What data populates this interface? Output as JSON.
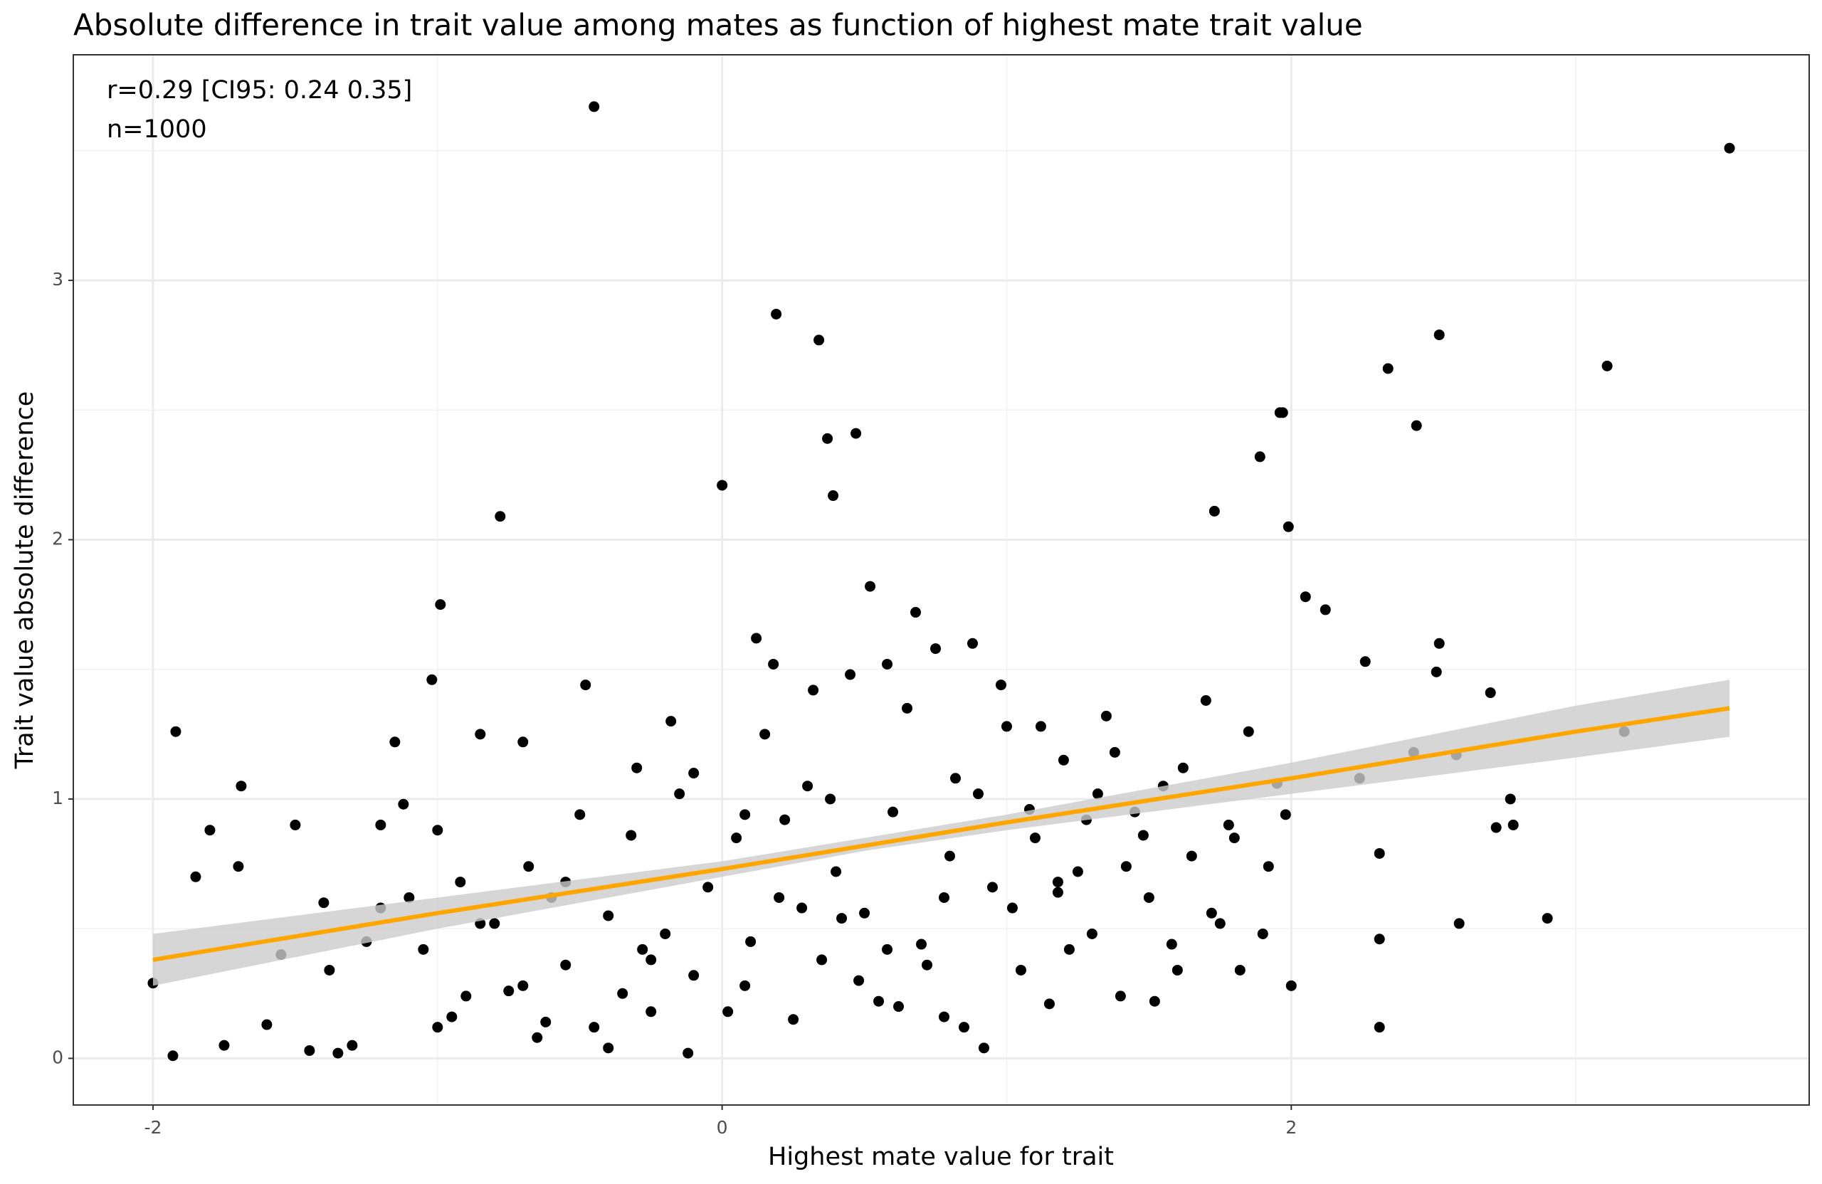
{
  "chart_data": {
    "type": "scatter",
    "title": "Absolute difference in trait value among mates as function of highest mate trait value",
    "x_label": "Highest mate value for trait",
    "y_label": "Trait value absolute difference",
    "annotations": [
      "r=0.29 [CI95: 0.24 0.35]",
      "n=1000"
    ],
    "xlim": [
      -2.28,
      3.82
    ],
    "ylim": [
      -0.18,
      3.87
    ],
    "xticks": [
      -2,
      0,
      2
    ],
    "yticks": [
      0,
      1,
      2,
      3
    ],
    "x_minor_grid": [
      -1,
      1,
      3
    ],
    "y_minor_grid": [
      0.5,
      1.5,
      2.5,
      3.5
    ],
    "grid": true,
    "color": "#000000",
    "x": [
      -0.45,
      3.54,
      0.19,
      0.34,
      2.52,
      3.11,
      2.34,
      2.44,
      1.96,
      1.97,
      1.89,
      -0.78,
      1.99,
      1.73,
      0,
      0.37,
      0.47,
      0.39,
      -1.92,
      2.77,
      2.9,
      2.31,
      2.31,
      2.59,
      2.7,
      3.17,
      2.52,
      2.51,
      2.26,
      2.12,
      2.05,
      2.24,
      2.31,
      2.78,
      2.72,
      2.43,
      2.58,
      -2,
      -1.93,
      -1.69,
      -0.99,
      -1.02,
      -0.48,
      -1.8,
      -1.75,
      -1.6,
      -1.5,
      -1.45,
      -1.4,
      -1.3,
      -1.25,
      -1.2,
      -1.15,
      -1.1,
      -1.05,
      -1,
      -0.95,
      -0.9,
      -0.85,
      -0.8,
      -0.75,
      -0.7,
      -0.65,
      -0.6,
      -0.55,
      -0.5,
      -0.45,
      -0.4,
      -0.35,
      -0.3,
      -0.25,
      -0.2,
      -0.15,
      -0.1,
      -0.05,
      0.05,
      0.1,
      0.15,
      0.2,
      0.25,
      0.3,
      0.35,
      0.4,
      0.45,
      0.5,
      0.55,
      0.6,
      0.65,
      0.7,
      0.75,
      0.8,
      0.85,
      0.9,
      0.95,
      1.0,
      1.05,
      1.1,
      1.15,
      1.2,
      1.25,
      1.3,
      1.35,
      1.4,
      1.45,
      1.5,
      1.55,
      1.6,
      1.65,
      1.7,
      1.75,
      1.8,
      1.85,
      1.9,
      1.95,
      2.0,
      -1.7,
      -1.55,
      -1.35,
      -1.2,
      -1.0,
      -0.85,
      -0.7,
      -0.55,
      -0.4,
      -0.25,
      -0.1,
      0.02,
      0.12,
      0.22,
      0.32,
      0.42,
      0.52,
      0.62,
      0.72,
      0.82,
      0.92,
      1.02,
      1.12,
      1.22,
      1.32,
      1.42,
      1.52,
      1.62,
      1.72,
      1.82,
      1.92,
      -1.85,
      -1.38,
      -1.12,
      -0.92,
      -0.62,
      -0.32,
      -0.18,
      0.08,
      0.28,
      0.58,
      0.78,
      0.98,
      1.18,
      1.38,
      1.58,
      1.78,
      1.98,
      -0.68,
      -0.28,
      0.08,
      0.18,
      0.48,
      0.68,
      0.88,
      1.08,
      1.28,
      1.48,
      -0.12,
      0.38,
      0.78,
      1.18,
      0.58
    ],
    "values": [
      3.67,
      3.51,
      2.87,
      2.77,
      2.79,
      2.67,
      2.66,
      2.44,
      2.49,
      2.49,
      2.32,
      2.09,
      2.05,
      2.11,
      2.21,
      2.39,
      2.41,
      2.17,
      1.26,
      1.0,
      0.54,
      0.12,
      0.46,
      0.52,
      1.41,
      1.26,
      1.6,
      1.49,
      1.53,
      1.73,
      1.78,
      1.08,
      0.79,
      0.9,
      0.89,
      1.18,
      1.17,
      0.29,
      0.01,
      1.05,
      1.75,
      1.46,
      1.44,
      0.88,
      0.05,
      0.13,
      0.9,
      0.03,
      0.6,
      0.05,
      0.45,
      0.58,
      1.22,
      0.62,
      0.42,
      0.88,
      0.16,
      0.24,
      1.25,
      0.52,
      0.26,
      1.22,
      0.08,
      0.62,
      0.36,
      0.94,
      0.12,
      0.55,
      0.25,
      1.12,
      0.18,
      0.48,
      1.02,
      0.32,
      0.66,
      0.85,
      0.45,
      1.25,
      0.62,
      0.15,
      1.05,
      0.38,
      0.72,
      1.48,
      0.56,
      0.22,
      0.95,
      1.35,
      0.44,
      1.58,
      0.78,
      0.12,
      1.02,
      0.66,
      1.28,
      0.34,
      0.85,
      0.21,
      1.15,
      0.72,
      0.48,
      1.32,
      0.24,
      0.95,
      0.62,
      1.05,
      0.34,
      0.78,
      1.38,
      0.52,
      0.85,
      1.26,
      0.48,
      1.06,
      0.28,
      0.74,
      0.4,
      0.02,
      0.9,
      0.12,
      0.52,
      0.28,
      0.68,
      0.04,
      0.38,
      1.1,
      0.18,
      1.62,
      0.92,
      1.42,
      0.54,
      1.82,
      0.2,
      0.36,
      1.08,
      0.04,
      0.58,
      1.28,
      0.42,
      1.02,
      0.74,
      0.22,
      1.12,
      0.56,
      0.34,
      0.74,
      0.7,
      0.34,
      0.98,
      0.68,
      0.14,
      0.86,
      1.3,
      0.28,
      0.58,
      1.52,
      0.16,
      1.44,
      0.68,
      1.18,
      0.44,
      0.9,
      0.94,
      0.74,
      0.42,
      0.94,
      1.52,
      0.3,
      1.72,
      1.6,
      0.96,
      0.92,
      0.86,
      0.02,
      1.0,
      0.62,
      0.64,
      0.42
    ],
    "fit": {
      "color": "#ffa500",
      "band_color": "#cccccc",
      "x": [
        -2,
        -1,
        0,
        0.5,
        1,
        2,
        3,
        3.54
      ],
      "values": [
        0.38,
        0.56,
        0.73,
        0.82,
        0.91,
        1.08,
        1.26,
        1.35
      ],
      "lower": [
        0.28,
        0.5,
        0.7,
        0.8,
        0.88,
        1.02,
        1.16,
        1.24
      ],
      "upper": [
        0.48,
        0.62,
        0.76,
        0.85,
        0.94,
        1.14,
        1.36,
        1.46
      ]
    }
  }
}
